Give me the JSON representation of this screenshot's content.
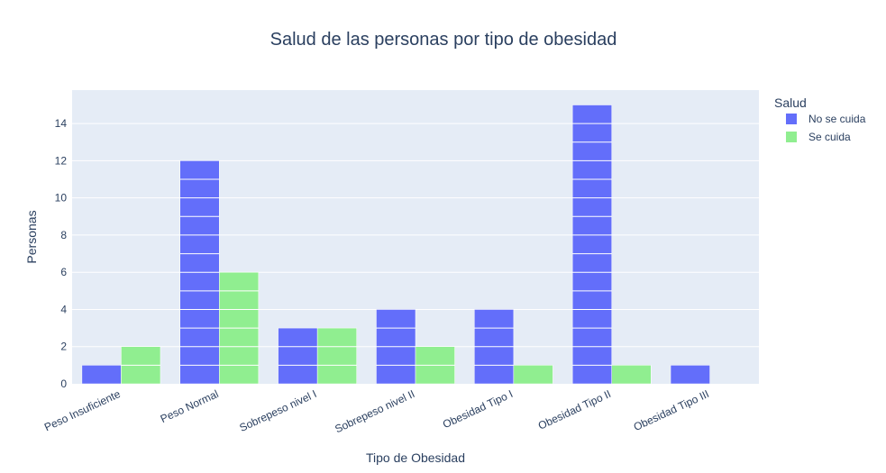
{
  "chart_data": {
    "type": "bar",
    "title": "Salud de las personas por tipo de obesidad",
    "xlabel": "Tipo de Obesidad",
    "ylabel": "Personas",
    "categories": [
      "Peso Insuficiente",
      "Peso Normal",
      "Sobrepeso nivel I",
      "Sobrepeso nivel II",
      "Obesidad Tipo I",
      "Obesidad Tipo II",
      "Obesidad Tipo III"
    ],
    "series": [
      {
        "name": "No se cuida",
        "color": "#636efa",
        "values": [
          1,
          12,
          3,
          4,
          4,
          15,
          1
        ]
      },
      {
        "name": "Se cuida",
        "color": "#90ee90",
        "values": [
          2,
          6,
          3,
          2,
          1,
          1,
          0
        ]
      }
    ],
    "ylim": [
      0,
      15.8
    ],
    "yticks": [
      0,
      2,
      4,
      6,
      8,
      10,
      12,
      14
    ],
    "grid": true,
    "legend": {
      "title": "Salud",
      "placement": "top-right"
    },
    "plot_background": "#e5ecf6"
  }
}
